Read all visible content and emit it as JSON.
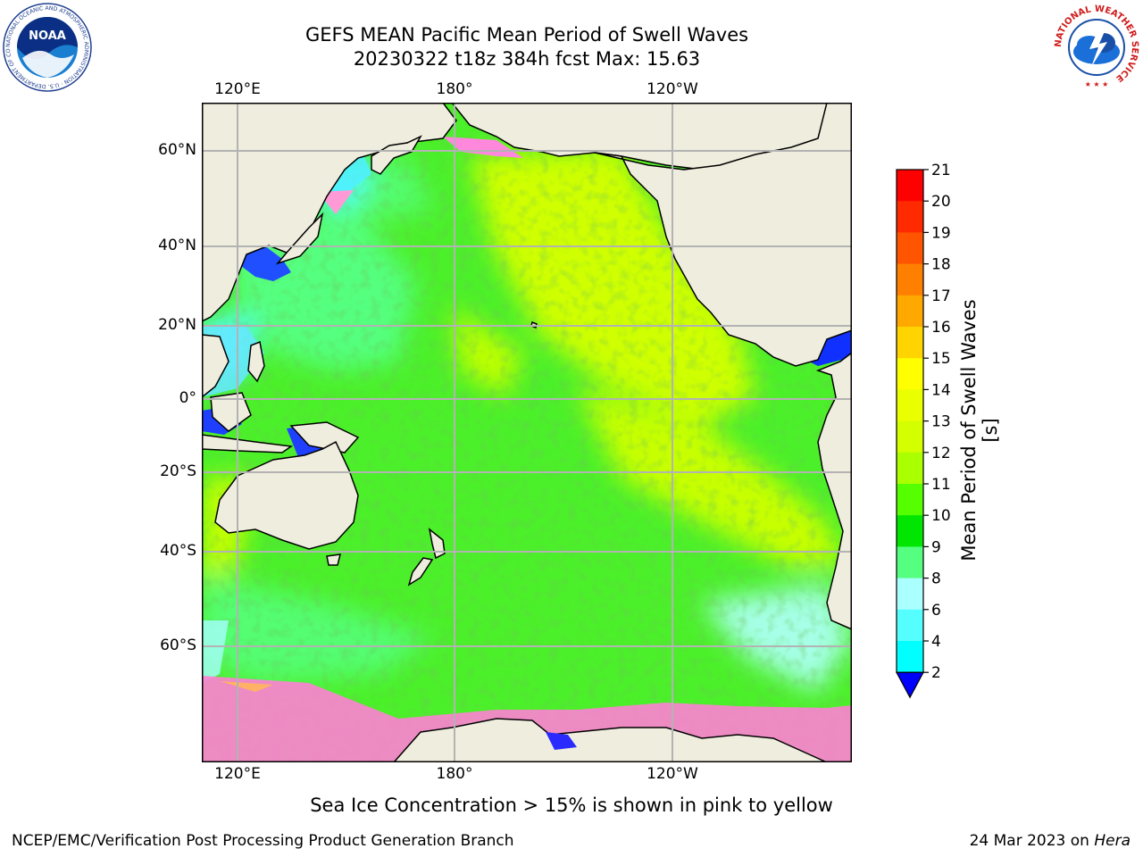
{
  "title": {
    "line1": "GEFS MEAN Pacific Mean Period of Swell Waves",
    "line2": "20230322 t18z 384h fcst   Max: 15.63"
  },
  "map": {
    "lon_labels": [
      "120°E",
      "180°",
      "120°W"
    ],
    "lat_labels": [
      "60°N",
      "40°N",
      "20°N",
      "0°",
      "20°S",
      "40°S",
      "60°S"
    ],
    "land_color": "#efedde",
    "grid_color": "#b3b3b3"
  },
  "colorbar": {
    "label": "Mean Period of Swell Waves [s]",
    "ticks": [
      "21",
      "20",
      "19",
      "18",
      "17",
      "16",
      "15",
      "14",
      "13",
      "12",
      "11",
      "10",
      "9",
      "8",
      "6",
      "4",
      "2"
    ],
    "colors": [
      "#ff0000",
      "#ff2a00",
      "#ff5500",
      "#ff7f00",
      "#ffa900",
      "#ffd400",
      "#ffff00",
      "#eaff00",
      "#d4ff00",
      "#aaff00",
      "#55ff00",
      "#00e600",
      "#55ff7f",
      "#aaffff",
      "#55ffff",
      "#00ffff",
      "#00d4ff",
      "#0055ff",
      "#0000ff"
    ]
  },
  "caption": "Sea Ice Concentration > 15% is shown in pink to yellow",
  "footer": {
    "left": "NCEP/EMC/Verification Post Processing Product Generation Branch",
    "right_date": "24 Mar 2023 on ",
    "right_host": "Hera"
  },
  "logos": {
    "noaa_text": "NOAA",
    "noaa_ring": "NATIONAL OCEANIC AND ATMOSPHERIC ADMINISTRATION · U.S. DEPARTMENT OF COMMERCE",
    "nws_ring": "NATIONAL WEATHER SERVICE"
  }
}
